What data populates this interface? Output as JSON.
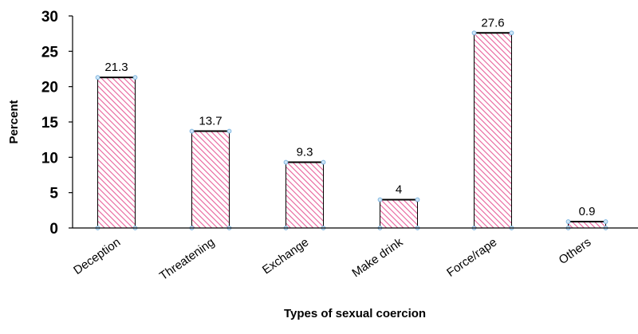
{
  "chart_data": {
    "type": "bar",
    "title": "",
    "xlabel": "Types of sexual coercion",
    "ylabel": "Percent",
    "ylim": [
      0,
      30
    ],
    "yticks": [
      0,
      5,
      10,
      15,
      20,
      25,
      30
    ],
    "categories": [
      "Deception",
      "Threatening",
      "Exchange",
      "Make drink",
      "Force/rape",
      "Others"
    ],
    "values": [
      21.3,
      13.7,
      9.3,
      4,
      27.6,
      0.9
    ],
    "data_labels": [
      "21.3",
      "13.7",
      "9.3",
      "4",
      "27.6",
      "0.9"
    ],
    "grid": false,
    "legend": "none",
    "colors": {
      "bar_fill": "#ffffff",
      "bar_hatch": "#e8609a",
      "bar_stroke": "#000000",
      "marker": "#7fb6e0",
      "axis": "#000000"
    }
  }
}
